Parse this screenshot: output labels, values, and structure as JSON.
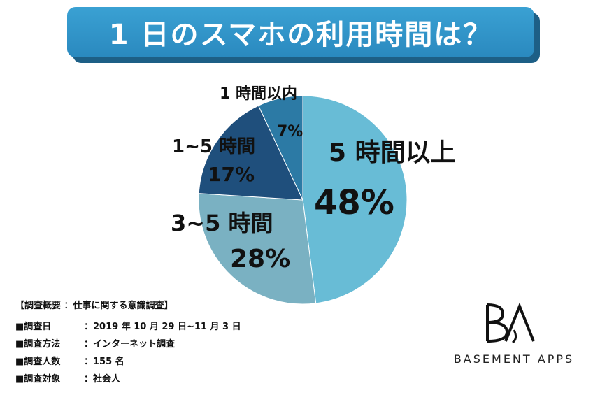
{
  "title": "1 日のスマホの利用時間は？",
  "chart_data": {
    "type": "pie",
    "title": "1 日のスマホの利用時間は？",
    "categories": [
      "5 時間以上",
      "3~5 時間",
      "1~5 時間",
      "1 時間以内"
    ],
    "values": [
      48,
      28,
      17,
      7
    ],
    "value_labels": [
      "48%",
      "28%",
      "17%",
      "7%"
    ],
    "colors": [
      "#68bcd6",
      "#7ab1c2",
      "#1f4f7c",
      "#2c7aa5"
    ],
    "start_angle_deg": 0,
    "direction": "clockwise",
    "legend": "none"
  },
  "survey": {
    "heading": "【調査概要 ：仕事に関する意識調査】",
    "rows": [
      {
        "key": "■調査日",
        "value": "：2019 年 10 月 29 日~11 月 3 日"
      },
      {
        "key": "■調査方法",
        "value": "：インターネット調査"
      },
      {
        "key": "■調査人数",
        "value": "：155 名"
      },
      {
        "key": "■調査対象",
        "value": "：社会人"
      }
    ]
  },
  "logo": {
    "mark": "BA",
    "text": "BASEMENT APPS"
  }
}
